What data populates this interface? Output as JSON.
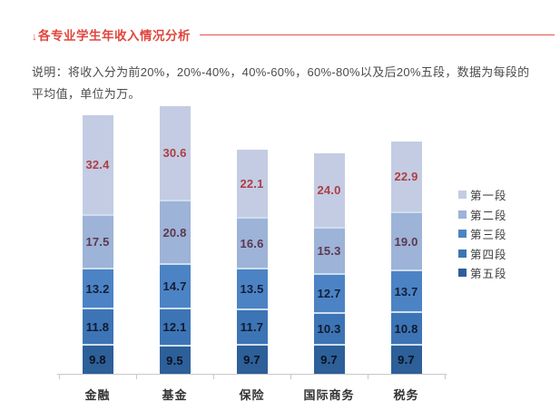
{
  "header": {
    "arrow_icon": "↓",
    "title": "各专业学生年收入情况分析"
  },
  "description": "说明：将收入分为前20%，20%-40%，40%-60%，60%-80%以及后20%五段，数据为每段的平均值，单位为万。",
  "chart_data": {
    "type": "bar",
    "stacked": true,
    "orientation": "vertical",
    "grid": false,
    "legend_position": "right",
    "unit": "万",
    "categories": [
      "金融",
      "基金",
      "保险",
      "国际商务",
      "税务"
    ],
    "series": [
      {
        "name": "第一段",
        "color": "#c3cce3",
        "label_color": "#ae3e44",
        "values": [
          "32.4",
          "30.6",
          "22.1",
          "24.0",
          "22.9"
        ]
      },
      {
        "name": "第二段",
        "color": "#9db3d7",
        "label_color": "#5c3850",
        "values": [
          "17.5",
          "20.8",
          "16.6",
          "15.3",
          "19.0"
        ]
      },
      {
        "name": "第三段",
        "color": "#4c83c5",
        "label_color": "#141f38",
        "values": [
          "13.2",
          "14.7",
          "13.5",
          "12.7",
          "13.7"
        ]
      },
      {
        "name": "第四段",
        "color": "#3d74b5",
        "label_color": "#0f1a2e",
        "values": [
          "11.8",
          "12.1",
          "11.7",
          "10.3",
          "10.8"
        ]
      },
      {
        "name": "第五段",
        "color": "#2d5f99",
        "label_color": "#0a1220",
        "values": [
          "9.8",
          "9.5",
          "9.7",
          "9.7",
          "9.7"
        ]
      }
    ],
    "totals": [
      84.7,
      87.7,
      73.6,
      72.0,
      76.1
    ],
    "axis_color": "#c9c9c9",
    "separator_color": "#cddef0"
  },
  "style": {
    "accent_red": "#e0453d"
  }
}
